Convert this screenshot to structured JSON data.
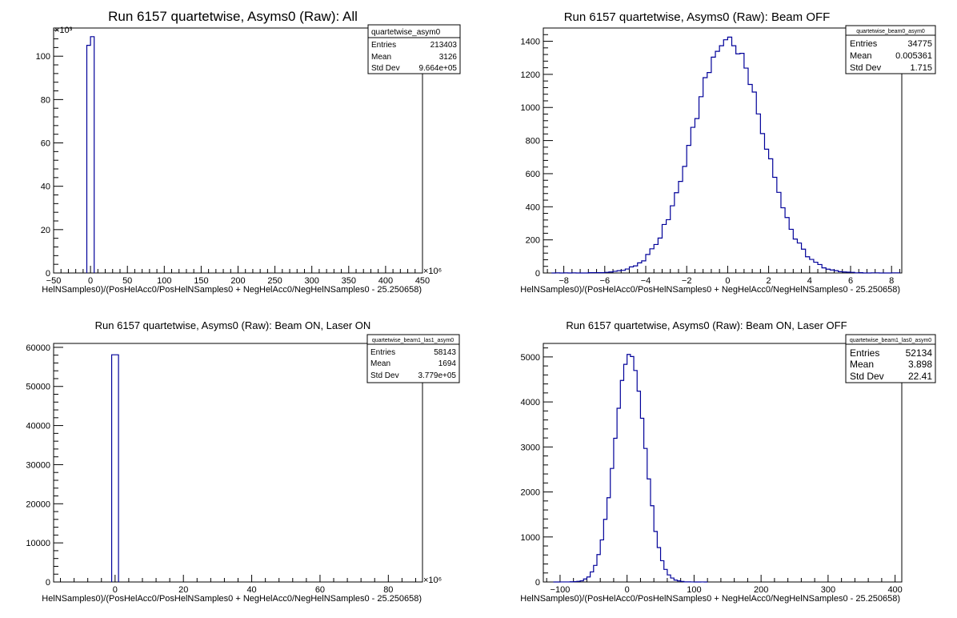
{
  "chart_data": [
    {
      "type": "bar",
      "title": "Run 6157 quartetwise, Asyms0 (Raw): All",
      "xlabel": "HelNSamples0)/(PosHelAcc0/PosHelNSamples0 + NegHelAcc0/NegHelNSamples0 - 25.250658)",
      "ylabel": "",
      "x_multiplier": "×10⁶",
      "y_multiplier": "×10³",
      "xlim": [
        -50,
        450
      ],
      "ylim": [
        0,
        113
      ],
      "x_ticks": [
        -50,
        0,
        50,
        100,
        150,
        200,
        250,
        300,
        350,
        400,
        450
      ],
      "x_tick_labels": [
        "−50",
        "0",
        "50",
        "100",
        "150",
        "200",
        "250",
        "300",
        "350",
        "400",
        "450"
      ],
      "y_ticks": [
        0,
        20,
        40,
        60,
        80,
        100
      ],
      "y_tick_labels": [
        "0",
        "20",
        "40",
        "60",
        "80",
        "100"
      ],
      "bins": [
        [
          -5,
          0,
          105
        ],
        [
          0,
          5,
          109
        ]
      ],
      "stats": {
        "name": "quartetwise_asym0",
        "entries_label": "Entries",
        "entries": "213403",
        "mean_label": "Mean",
        "mean": "3126",
        "std_label": "Std Dev",
        "std": "9.664e+05"
      }
    },
    {
      "type": "bar",
      "title": "Run 6157 quartetwise, Asyms0 (Raw): Beam OFF",
      "xlabel": "HelNSamples0)/(PosHelAcc0/PosHelNSamples0 + NegHelAcc0/NegHelNSamples0 - 25.250658)",
      "ylabel": "",
      "x_multiplier": "",
      "y_multiplier": "",
      "xlim": [
        -9,
        8.5
      ],
      "ylim": [
        0,
        1480
      ],
      "x_ticks": [
        -8,
        -6,
        -4,
        -2,
        0,
        2,
        4,
        6,
        8
      ],
      "x_tick_labels": [
        "−8",
        "−6",
        "−4",
        "−2",
        "0",
        "2",
        "4",
        "6",
        "8"
      ],
      "y_ticks": [
        0,
        200,
        400,
        600,
        800,
        1000,
        1200,
        1400
      ],
      "y_tick_labels": [
        "0",
        "200",
        "400",
        "600",
        "800",
        "1000",
        "1200",
        "1400"
      ],
      "gauss": {
        "mean": 0.0,
        "sigma": 1.715,
        "peak": 1410,
        "bin_width": 0.2,
        "noise_seed": 7
      },
      "stats": {
        "name": "quartetwise_beam0_asym0",
        "entries_label": "Entries",
        "entries": "34775",
        "mean_label": "Mean",
        "mean": "0.005361",
        "std_label": "Std Dev",
        "std": "1.715"
      }
    },
    {
      "type": "bar",
      "title": "Run 6157 quartetwise, Asyms0 (Raw): Beam ON, Laser ON",
      "xlabel": "HelNSamples0)/(PosHelAcc0/PosHelNSamples0 + NegHelAcc0/NegHelNSamples0 - 25.250658)",
      "ylabel": "",
      "x_multiplier": "×10⁶",
      "y_multiplier": "",
      "xlim": [
        -18,
        90
      ],
      "ylim": [
        0,
        61000
      ],
      "x_ticks": [
        0,
        20,
        40,
        60,
        80
      ],
      "x_tick_labels": [
        "0",
        "20",
        "40",
        "60",
        "80"
      ],
      "y_ticks": [
        0,
        10000,
        20000,
        30000,
        40000,
        50000,
        60000
      ],
      "y_tick_labels": [
        "0",
        "10000",
        "20000",
        "30000",
        "40000",
        "50000",
        "60000"
      ],
      "bins": [
        [
          -1,
          0,
          58100
        ],
        [
          0,
          1,
          58100
        ]
      ],
      "stats": {
        "name": "quartetwise_beam1_las1_asym0",
        "entries_label": "Entries",
        "entries": "58143",
        "mean_label": "Mean",
        "mean": "1694",
        "std_label": "Std Dev",
        "std": "3.779e+05"
      }
    },
    {
      "type": "bar",
      "title": "Run 6157 quartetwise, Asyms0 (Raw): Beam ON, Laser OFF",
      "xlabel": "HelNSamples0)/(PosHelAcc0/PosHelNSamples0 + NegHelAcc0/NegHelNSamples0 - 25.250658)",
      "ylabel": "",
      "x_multiplier": "",
      "y_multiplier": "",
      "xlim": [
        -125,
        410
      ],
      "ylim": [
        0,
        5300
      ],
      "x_ticks": [
        -100,
        0,
        100,
        200,
        300,
        400
      ],
      "x_tick_labels": [
        "−100",
        "0",
        "100",
        "200",
        "300",
        "400"
      ],
      "y_ticks": [
        0,
        1000,
        2000,
        3000,
        4000,
        5000
      ],
      "y_tick_labels": [
        "0",
        "1000",
        "2000",
        "3000",
        "4000",
        "5000"
      ],
      "gauss": {
        "mean": 3.9,
        "sigma": 22.41,
        "peak": 5080,
        "bin_width": 5,
        "noise_seed": 3
      },
      "stats": {
        "name": "quartetwise_beam1_las0_asym0",
        "entries_label": "Entries",
        "entries": "52134",
        "mean_label": "Mean",
        "mean": "3.898",
        "std_label": "Std Dev",
        "std": "22.41"
      }
    }
  ]
}
